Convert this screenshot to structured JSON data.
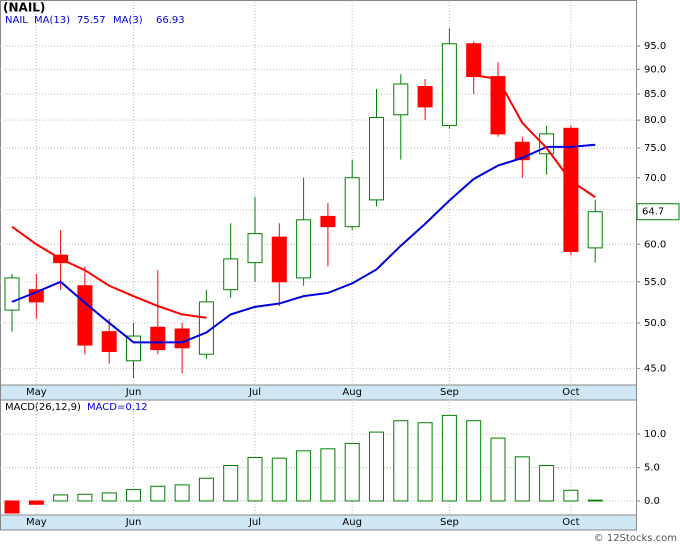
{
  "chart_data": [
    {
      "type": "candlestick",
      "title": "(NAIL)",
      "ticker": "NAIL",
      "categories": [
        null,
        "May",
        null,
        null,
        null,
        "Jun",
        null,
        null,
        null,
        null,
        "Jul",
        null,
        null,
        null,
        "Aug",
        null,
        null,
        null,
        "Sep",
        null,
        null,
        null,
        null,
        "Oct",
        null
      ],
      "open": [
        51.5,
        54,
        58.5,
        54.5,
        49,
        45.8,
        49.5,
        49.3,
        46.5,
        54,
        57.5,
        61,
        55.5,
        64,
        62.5,
        66.5,
        81,
        86.5,
        79,
        95.5,
        88.5,
        76,
        74,
        78.5,
        59.5
      ],
      "high": [
        56,
        56,
        62,
        57,
        50.5,
        50,
        56.5,
        50,
        54,
        63,
        67,
        63,
        70,
        66,
        73,
        86,
        89,
        88,
        99,
        96,
        91.5,
        77,
        79,
        79,
        66.5
      ],
      "low": [
        49,
        50.5,
        54,
        46.5,
        45.5,
        44,
        46.5,
        44.5,
        46,
        53,
        55,
        52,
        54.5,
        57,
        62,
        65.5,
        73,
        80,
        78.5,
        85,
        77,
        70,
        70.5,
        58.5,
        57.5
      ],
      "close": [
        55.5,
        52.5,
        57.5,
        47.5,
        46.8,
        48.5,
        47,
        47.2,
        52.5,
        58,
        61.5,
        55,
        63.5,
        62.5,
        70,
        80.5,
        87,
        82.5,
        95.5,
        88.5,
        77.5,
        73,
        77.5,
        59,
        64.7
      ],
      "up_color": "#008000",
      "down_color": "#ff0000",
      "series": [
        {
          "name": "MA(13)",
          "color": "#0000dd",
          "values": [
            52.5,
            53.7,
            55,
            52.4,
            50,
            47.8,
            47.8,
            47.8,
            48.9,
            51,
            51.9,
            52.3,
            53.2,
            53.6,
            54.8,
            56.6,
            59.8,
            62.9,
            66.4,
            69.8,
            72,
            73.3,
            75.2,
            75.2,
            75.57
          ]
        },
        {
          "name": "MA(3)",
          "color": "#ff0000",
          "values": [
            62.5,
            60,
            58,
            56.5,
            54.5,
            53.2,
            52,
            51,
            50.6,
            null,
            null,
            null,
            null,
            null,
            null,
            null,
            null,
            null,
            null,
            88.8,
            88,
            79.5,
            75,
            69.5,
            66.93
          ]
        }
      ],
      "log_scale": true,
      "ylim": [
        43.3,
        105.2
      ],
      "yticks": [
        {
          "value": 45,
          "label": "45.0"
        },
        {
          "value": 50,
          "label": "50.0"
        },
        {
          "value": 55,
          "label": "55.0"
        },
        {
          "value": 60,
          "label": "60.0"
        },
        {
          "value": 65,
          "label": "65.0"
        },
        {
          "value": 70,
          "label": "70.0"
        },
        {
          "value": 75,
          "label": "75.0"
        },
        {
          "value": 80,
          "label": "80.0"
        },
        {
          "value": 85,
          "label": "85.0"
        },
        {
          "value": 90,
          "label": "90.0"
        },
        {
          "value": 95,
          "label": "95.0"
        }
      ],
      "grid": true
    },
    {
      "type": "bar",
      "title": "MACD(26,12,9)",
      "series": [
        {
          "name": "MACD=0.12",
          "up_color": "#008000",
          "down_color": "#ff0000",
          "values": [
            -1.8,
            -0.5,
            0.9,
            1.0,
            1.2,
            1.7,
            2.2,
            2.4,
            3.4,
            5.3,
            6.5,
            6.4,
            7.5,
            7.8,
            8.6,
            10.3,
            12.0,
            11.7,
            12.8,
            12.0,
            9.4,
            6.6,
            5.3,
            1.6,
            0.12
          ]
        }
      ],
      "ylim": [
        -2.1,
        14.8
      ],
      "yticks": [
        {
          "value": 0,
          "label": "0.0"
        },
        {
          "value": 5,
          "label": "5.0"
        },
        {
          "value": 10,
          "label": "10.0"
        }
      ],
      "grid": true
    }
  ],
  "footer": "© 12Stocks.com"
}
